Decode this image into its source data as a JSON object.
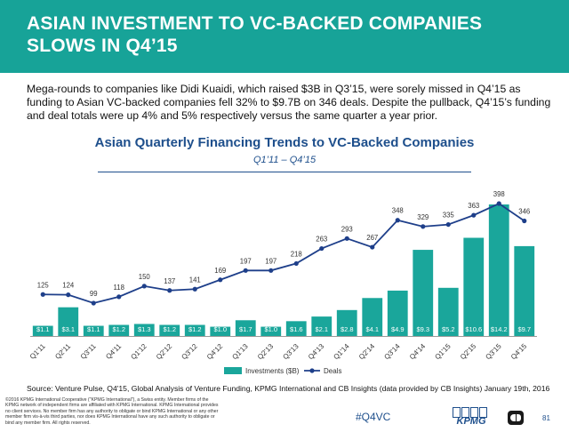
{
  "header": {
    "title": "ASIAN INVESTMENT TO VC-BACKED COMPANIES SLOWS IN Q4’15"
  },
  "intro": "Mega-rounds to companies like Didi Kuaidi, which raised $3B in Q3’15, were sorely missed in Q4’15 as funding to Asian VC-backed companies fell 32% to $9.7B on 346 deals. Despite the pullback, Q4’15’s funding and deal totals were up 4% and 5% respectively versus the same quarter a year prior.",
  "chart_data": {
    "type": "bar",
    "title": "Asian Quarterly Financing Trends to VC-Backed Companies",
    "subtitle": "Q1’11 – Q4’15",
    "categories": [
      "Q1'11",
      "Q2'11",
      "Q3'11",
      "Q4'11",
      "Q1'12",
      "Q2'12",
      "Q3'12",
      "Q4'12",
      "Q1'13",
      "Q2'13",
      "Q3'13",
      "Q4'13",
      "Q1'14",
      "Q2'14",
      "Q3'14",
      "Q4'14",
      "Q1'15",
      "Q2'15",
      "Q3'15",
      "Q4'15"
    ],
    "series": [
      {
        "name": "Investments ($B)",
        "type": "bar",
        "color": "#1aa69b",
        "values": [
          1.1,
          3.1,
          1.1,
          1.2,
          1.3,
          1.2,
          1.2,
          1.0,
          1.7,
          1.0,
          1.6,
          2.1,
          2.8,
          4.1,
          4.9,
          9.3,
          5.2,
          10.6,
          14.2,
          9.7
        ],
        "labels": [
          "$1.1",
          "$3.1",
          "$1.1",
          "$1.2",
          "$1.3",
          "$1.2",
          "$1.2",
          "$1.0",
          "$1.7",
          "$1.0",
          "$1.6",
          "$2.1",
          "$2.8",
          "$4.1",
          "$4.9",
          "$9.3",
          "$5.2",
          "$10.6",
          "$14.2",
          "$9.7"
        ]
      },
      {
        "name": "Deals",
        "type": "line",
        "color": "#1e3f8a",
        "values": [
          125,
          124,
          99,
          118,
          150,
          137,
          141,
          169,
          197,
          197,
          218,
          263,
          293,
          267,
          348,
          329,
          335,
          363,
          398,
          346
        ]
      }
    ],
    "legend": "bottom"
  },
  "source": "Source: Venture Pulse, Q4'15, Global Analysis of Venture Funding, KPMG International and CB Insights (data provided by CB Insights) January 19th, 2016",
  "footer": {
    "legal": "©2016 KPMG International Cooperative (\"KPMG International\"), a Swiss entity. Member firms of the KPMG network of independent firms are affiliated with KPMG International. KPMG International provides no client services. No member firm has any authority to obligate or bind KPMG International or any other member firm vis-à-vis third parties, nor does KPMG International have any such authority to obligate or bind any member firm. All rights reserved.",
    "hashtag": "#Q4VC",
    "logo_text": "KPMG",
    "page_number": "81"
  }
}
